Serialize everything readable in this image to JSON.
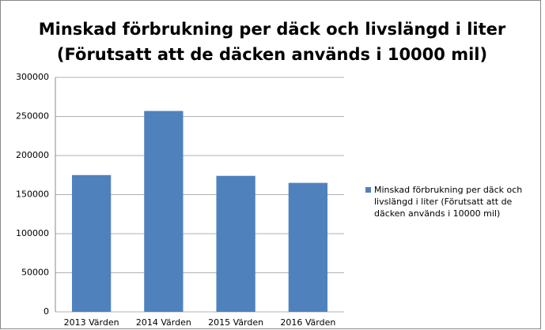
{
  "chart_data": {
    "type": "bar",
    "title": [
      "Minskad förbrukning per däck och livslängd i liter",
      "(Förutsatt att de däcken används i 10000 mil)"
    ],
    "categories": [
      "2013 Värden",
      "2014 Värden",
      "2015 Värden",
      "2016 Värden"
    ],
    "series": [
      {
        "name": "Minskad förbrukning per däck och livslängd i liter (Förutsatt att de däcken används i 10000 mil)",
        "color": "#4f81bd",
        "values": [
          175000,
          257000,
          174000,
          165000
        ]
      }
    ],
    "ylim": [
      0,
      300000
    ],
    "yticks": [
      0,
      50000,
      100000,
      150000,
      200000,
      250000,
      300000
    ],
    "grid": true,
    "legend": "right"
  }
}
